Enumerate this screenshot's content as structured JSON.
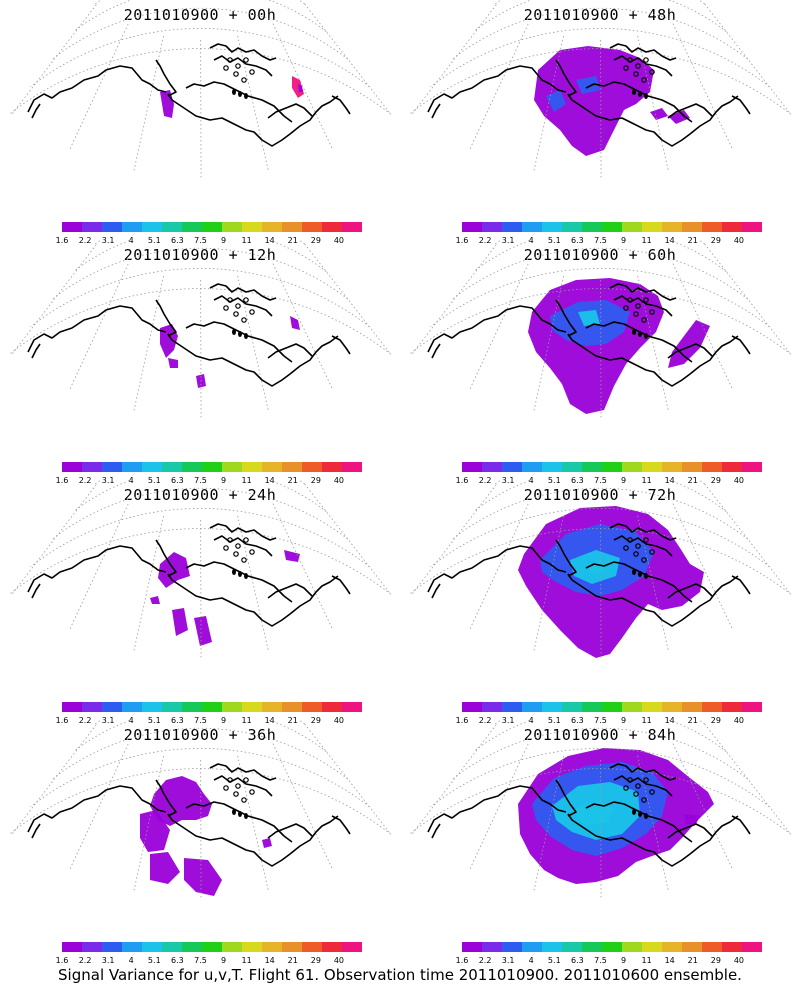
{
  "colorbar": {
    "colors": [
      "#9a00d8",
      "#7a2ae8",
      "#2f5cf0",
      "#1e9ef0",
      "#19c4e8",
      "#17c9a8",
      "#14c85a",
      "#1fcf1a",
      "#9fd81c",
      "#d8d81e",
      "#e6b32a",
      "#e8902a",
      "#ee5a2a",
      "#ee2a3a",
      "#ee1480"
    ],
    "labels": [
      "1.6",
      "2.2",
      "3.1",
      "4",
      "5.1",
      "6.3",
      "7.5",
      "9",
      "11",
      "14",
      "21",
      "29",
      "40"
    ]
  },
  "colors": {
    "low": "#9a00d8",
    "mid": "#2f5cf0",
    "cyan": "#19c4e8",
    "high": "#ee1480",
    "coast": "#000000",
    "grid": "#9a9a9a"
  },
  "panels": [
    {
      "title": "2011010900 + 00h",
      "level": 0
    },
    {
      "title": "2011010900 + 48h",
      "level": 4
    },
    {
      "title": "2011010900 + 12h",
      "level": 1
    },
    {
      "title": "2011010900 + 60h",
      "level": 5
    },
    {
      "title": "2011010900 + 24h",
      "level": 2
    },
    {
      "title": "2011010900 + 72h",
      "level": 6
    },
    {
      "title": "2011010900 + 36h",
      "level": 3
    },
    {
      "title": "2011010900 + 84h",
      "level": 7
    }
  ],
  "footer": "Signal Variance for u,v,T. Flight 61. Observation time 2011010900. 2011010600 ensemble."
}
